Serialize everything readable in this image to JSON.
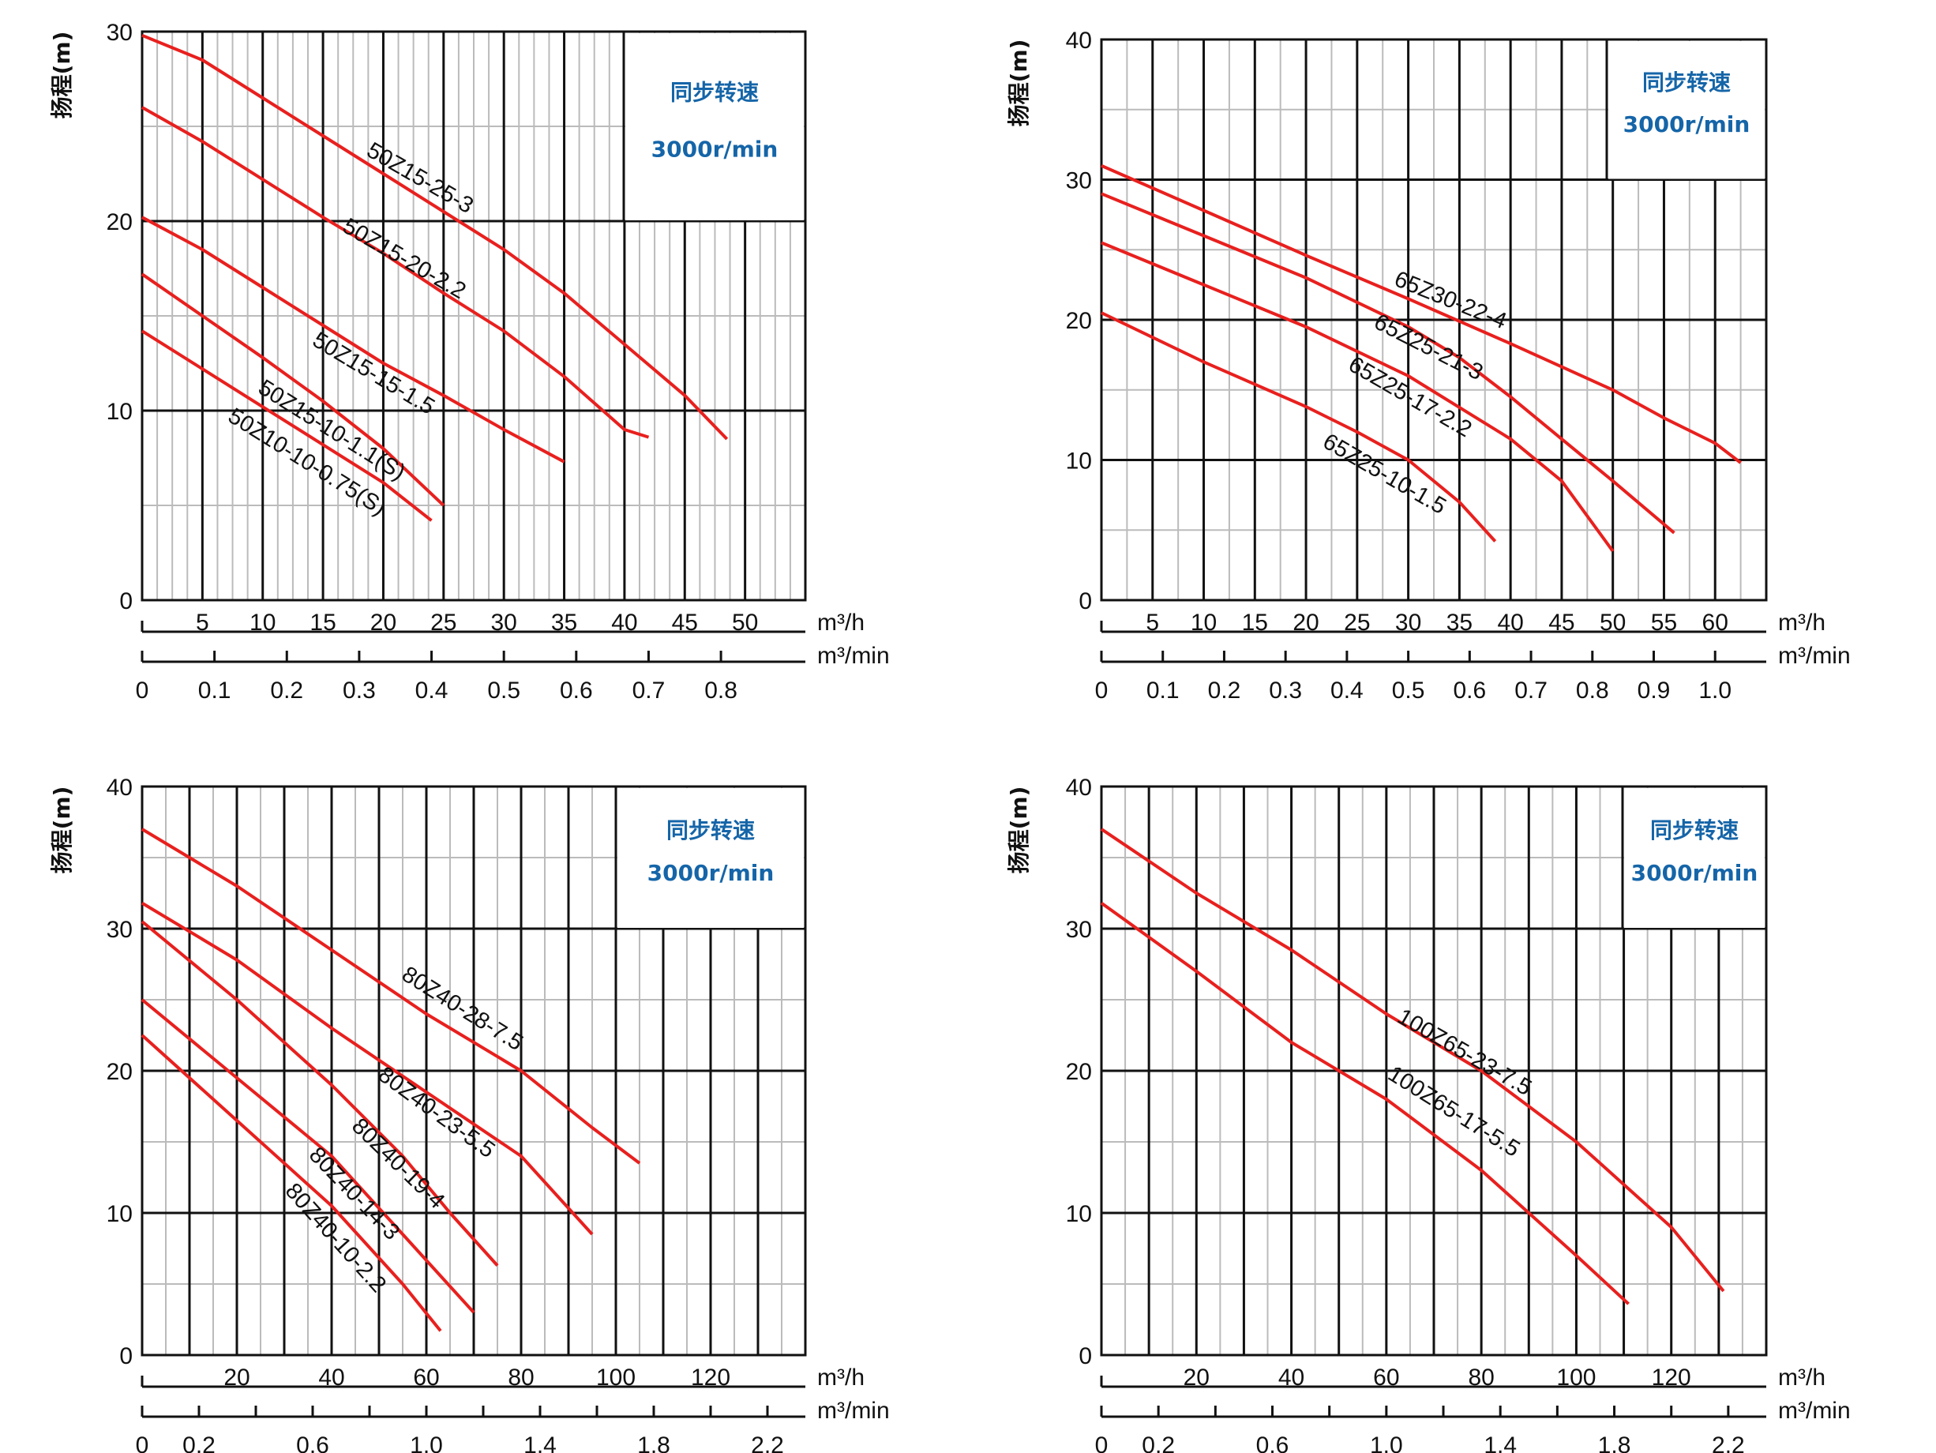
{
  "colors": {
    "curve": "#e8201e",
    "grid_major": "#111111",
    "grid_minor": "#bbbbbb",
    "speed_text": "#1565a8"
  },
  "chart_data": [
    {
      "type": "line",
      "name": "panel-50z",
      "ylabel": "扬程(m)",
      "speed_title": "同步转速",
      "speed_value": "3000r/min",
      "x_unit_main": "m³/h",
      "x_unit_secondary": "m³/min",
      "xlim": [
        0,
        55
      ],
      "ylim": [
        0,
        30
      ],
      "y_ticks": [
        0,
        10,
        20,
        30
      ],
      "x_ticks": [
        5,
        10,
        15,
        20,
        25,
        30,
        35,
        40,
        45,
        50
      ],
      "x_ticks_min": [
        {
          "value": 0,
          "label": "0"
        },
        {
          "value": 0.1,
          "label": "0.1"
        },
        {
          "value": 0.2,
          "label": "0.2"
        },
        {
          "value": 0.3,
          "label": "0.3"
        },
        {
          "value": 0.4,
          "label": "0.4"
        },
        {
          "value": 0.5,
          "label": "0.5"
        },
        {
          "value": 0.6,
          "label": "0.6"
        },
        {
          "value": 0.7,
          "label": "0.7"
        },
        {
          "value": 0.8,
          "label": "0.8"
        }
      ],
      "series": [
        {
          "name": "50Z15-25-3",
          "x": [
            0,
            5,
            10,
            15,
            20,
            25,
            30,
            35,
            40,
            45,
            48.5
          ],
          "y": [
            29.8,
            28.5,
            26.5,
            24.5,
            22.5,
            20.5,
            18.5,
            16.2,
            13.5,
            10.8,
            8.5
          ],
          "label_at": [
            18.5,
            23.5
          ],
          "label_angle": 30
        },
        {
          "name": "50Z15-20-2.2",
          "x": [
            0,
            5,
            10,
            15,
            20,
            25,
            30,
            35,
            40,
            42
          ],
          "y": [
            26,
            24.2,
            22.2,
            20.2,
            18.3,
            16.2,
            14.2,
            11.8,
            9.0,
            8.6
          ],
          "label_at": [
            16.5,
            19.5
          ],
          "label_angle": 30
        },
        {
          "name": "50Z15-15-1.5",
          "x": [
            0,
            5,
            10,
            15,
            20,
            25,
            30,
            35
          ],
          "y": [
            20.2,
            18.5,
            16.5,
            14.5,
            12.5,
            10.8,
            9.0,
            7.3
          ],
          "label_at": [
            14,
            13.5
          ],
          "label_angle": 31
        },
        {
          "name": "50Z15-10-1.1(S)",
          "x": [
            0,
            5,
            10,
            15,
            20,
            25
          ],
          "y": [
            17.2,
            15,
            12.8,
            10.5,
            8.0,
            5.0
          ],
          "label_at": [
            9.5,
            11
          ],
          "label_angle": 32
        },
        {
          "name": "50Z10-10-0.75(S)",
          "x": [
            0,
            5,
            10,
            15,
            20,
            24
          ],
          "y": [
            14.2,
            12.2,
            10.2,
            8.2,
            6.2,
            4.2
          ],
          "label_at": [
            7,
            9.5
          ],
          "label_angle": 32
        }
      ]
    },
    {
      "type": "line",
      "name": "panel-65z",
      "ylabel": "扬程(m)",
      "speed_title": "同步转速",
      "speed_value": "3000r/min",
      "x_unit_main": "m³/h",
      "x_unit_secondary": "m³/min",
      "xlim": [
        0,
        65
      ],
      "ylim": [
        0,
        40
      ],
      "y_ticks": [
        0,
        10,
        20,
        30,
        40
      ],
      "x_ticks": [
        5,
        10,
        15,
        20,
        25,
        30,
        35,
        40,
        45,
        50,
        55,
        60
      ],
      "x_ticks_min": [
        {
          "value": 0,
          "label": "0"
        },
        {
          "value": 0.1,
          "label": "0.1"
        },
        {
          "value": 0.2,
          "label": "0.2"
        },
        {
          "value": 0.3,
          "label": "0.3"
        },
        {
          "value": 0.4,
          "label": "0.4"
        },
        {
          "value": 0.5,
          "label": "0.5"
        },
        {
          "value": 0.6,
          "label": "0.6"
        },
        {
          "value": 0.7,
          "label": "0.7"
        },
        {
          "value": 0.8,
          "label": "0.8"
        },
        {
          "value": 0.9,
          "label": "0.9"
        },
        {
          "value": 1.0,
          "label": "1.0"
        }
      ],
      "series": [
        {
          "name": "65Z30-22-4",
          "x": [
            0,
            10,
            20,
            30,
            40,
            50,
            55,
            60,
            62.5
          ],
          "y": [
            31,
            27.8,
            24.6,
            21.5,
            18.3,
            15,
            13,
            11.2,
            9.8
          ],
          "label_at": [
            28.5,
            22.5
          ],
          "label_angle": 22
        },
        {
          "name": "65Z25-21-3",
          "x": [
            0,
            10,
            20,
            30,
            35,
            40,
            45,
            50,
            56
          ],
          "y": [
            29,
            26,
            23,
            19.5,
            17.3,
            14.5,
            11.5,
            8.5,
            4.8
          ],
          "label_at": [
            26.5,
            19.5
          ],
          "label_angle": 27
        },
        {
          "name": "65Z25-17-2.2",
          "x": [
            0,
            10,
            20,
            30,
            40,
            45,
            50
          ],
          "y": [
            25.5,
            22.5,
            19.5,
            16,
            11.5,
            8.5,
            3.5
          ],
          "label_at": [
            24,
            16.5
          ],
          "label_angle": 30
        },
        {
          "name": "65Z25-10-1.5",
          "x": [
            0,
            10,
            20,
            25,
            30,
            35,
            38.5
          ],
          "y": [
            20.5,
            17,
            13.8,
            12,
            10,
            7.0,
            4.2
          ],
          "label_at": [
            21.5,
            11
          ],
          "label_angle": 30
        }
      ]
    },
    {
      "type": "line",
      "name": "panel-80z",
      "ylabel": "扬程(m)",
      "speed_title": "同步转速",
      "speed_value": "3000r/min",
      "x_unit_main": "m³/h",
      "x_unit_secondary": "m³/min",
      "xlim": [
        0,
        140
      ],
      "ylim": [
        0,
        40
      ],
      "y_ticks": [
        0,
        10,
        20,
        30,
        40
      ],
      "x_ticks": [
        20,
        40,
        60,
        80,
        100,
        120
      ],
      "x_ticks_min": [
        {
          "value": 0,
          "label": "0"
        },
        {
          "value": 0.2,
          "label": "0.2"
        },
        {
          "value": 0.6,
          "label": "0.6"
        },
        {
          "value": 1.0,
          "label": "1.0"
        },
        {
          "value": 1.4,
          "label": "1.4"
        },
        {
          "value": 1.8,
          "label": "1.8"
        },
        {
          "value": 2.2,
          "label": "2.2"
        }
      ],
      "series": [
        {
          "name": "80Z40-28-7.5",
          "x": [
            0,
            20,
            40,
            60,
            80,
            95,
            105
          ],
          "y": [
            37,
            33,
            28.5,
            24,
            20,
            16,
            13.5
          ],
          "label_at": [
            54.5,
            26.5
          ],
          "label_angle": 32
        },
        {
          "name": "80Z40-23-5.5",
          "x": [
            0,
            20,
            40,
            60,
            80,
            95
          ],
          "y": [
            31.8,
            27.8,
            23,
            18.5,
            14,
            8.5
          ],
          "label_at": [
            49.5,
            19.5
          ],
          "label_angle": 36
        },
        {
          "name": "80Z40-19-4",
          "x": [
            0,
            20,
            40,
            55,
            65,
            75
          ],
          "y": [
            30.5,
            25,
            19,
            14,
            10,
            6.3
          ],
          "label_at": [
            44,
            16
          ],
          "label_angle": 44
        },
        {
          "name": "80Z40-14-3",
          "x": [
            0,
            20,
            40,
            55,
            70
          ],
          "y": [
            25,
            19.5,
            14,
            8.5,
            3.0
          ],
          "label_at": [
            35,
            14
          ],
          "label_angle": 46
        },
        {
          "name": "80Z40-10-2.2",
          "x": [
            0,
            20,
            40,
            55,
            63
          ],
          "y": [
            22.5,
            16.5,
            10.5,
            5.0,
            1.7
          ],
          "label_at": [
            30,
            11.5
          ],
          "label_angle": 48
        }
      ]
    },
    {
      "type": "line",
      "name": "panel-100z",
      "ylabel": "扬程(m)",
      "speed_title": "同步转速",
      "speed_value": "3000r/min",
      "x_unit_main": "m³/h",
      "x_unit_secondary": "m³/min",
      "xlim": [
        0,
        140
      ],
      "ylim": [
        0,
        40
      ],
      "y_ticks": [
        0,
        10,
        20,
        30,
        40
      ],
      "x_ticks": [
        20,
        40,
        60,
        80,
        100,
        120
      ],
      "x_ticks_min": [
        {
          "value": 0,
          "label": "0"
        },
        {
          "value": 0.2,
          "label": "0.2"
        },
        {
          "value": 0.6,
          "label": "0.6"
        },
        {
          "value": 1.0,
          "label": "1.0"
        },
        {
          "value": 1.4,
          "label": "1.4"
        },
        {
          "value": 1.8,
          "label": "1.8"
        },
        {
          "value": 2.2,
          "label": "2.2"
        }
      ],
      "series": [
        {
          "name": "100Z65-23-7.5",
          "x": [
            0,
            20,
            40,
            60,
            80,
            100,
            120,
            131
          ],
          "y": [
            37,
            32.5,
            28.5,
            24,
            20,
            15,
            9,
            4.5
          ],
          "label_at": [
            62,
            23.5
          ],
          "label_angle": 30
        },
        {
          "name": "100Z65-17-5.5",
          "x": [
            0,
            20,
            40,
            60,
            80,
            100,
            111
          ],
          "y": [
            31.8,
            27,
            22,
            18,
            13,
            7,
            3.6
          ],
          "label_at": [
            60,
            19.5
          ],
          "label_angle": 32
        }
      ]
    }
  ]
}
